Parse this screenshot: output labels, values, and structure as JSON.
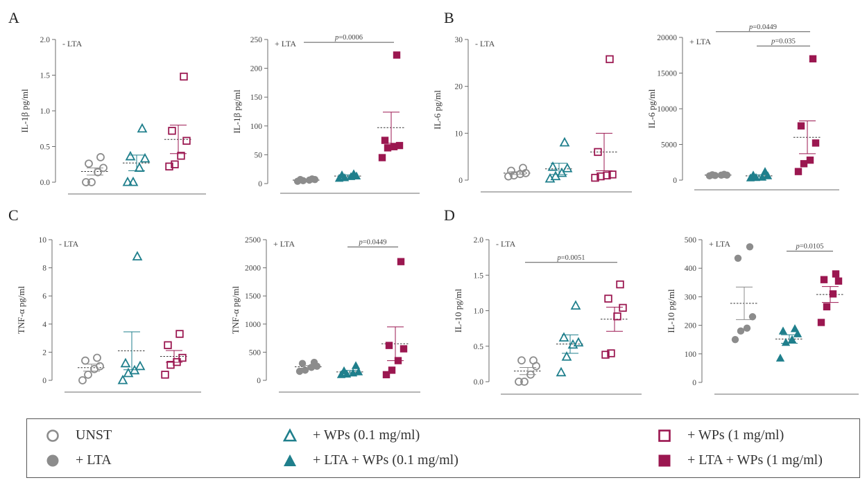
{
  "colors": {
    "unst": "#8c8c8c",
    "wp01": "#1f7f8c",
    "wp1": "#9b1750",
    "axis": "#6b6b6b",
    "sem": "#9a9a9a"
  },
  "panel_letters": [
    "A",
    "B",
    "C",
    "D"
  ],
  "legend": [
    {
      "key": "unst_open",
      "label": "UNST",
      "shape": "circle-open",
      "color": "#8c8c8c"
    },
    {
      "key": "unst_filled",
      "label": "+ LTA",
      "shape": "circle-filled",
      "color": "#8c8c8c"
    },
    {
      "key": "wp01_open",
      "label": "+ WPs (0.1 mg/ml)",
      "shape": "triangle-open",
      "color": "#1f7f8c"
    },
    {
      "key": "wp01_filled",
      "label": "+ LTA + WPs (0.1 mg/ml)",
      "shape": "triangle-filled",
      "color": "#1f7f8c"
    },
    {
      "key": "wp1_open",
      "label": "+ WPs (1 mg/ml)",
      "shape": "square-open",
      "color": "#9b1750"
    },
    {
      "key": "wp1_filled",
      "label": "+ LTA + WPs (1 mg/ml)",
      "shape": "square-filled",
      "color": "#9b1750"
    }
  ],
  "chart_data": [
    {
      "id": "A1",
      "type": "scatter",
      "title": "- LTA",
      "ylabel": "IL-1β pg/ml",
      "ylim": [
        0,
        2.0
      ],
      "ticks": [
        0.0,
        0.5,
        1.0,
        1.5,
        2.0
      ],
      "tick_labels": [
        "0.0",
        "0.5",
        "1.0",
        "1.5",
        "2.0"
      ],
      "filled": false,
      "groups": [
        {
          "name": "UNST",
          "points": [
            0.0,
            0.0,
            0.14,
            0.2,
            0.26,
            0.35
          ],
          "mean": 0.15,
          "sem": 0.05
        },
        {
          "name": "+ WPs (0.1 mg/ml)",
          "points": [
            0.0,
            0.0,
            0.2,
            0.33,
            0.36,
            0.75
          ],
          "mean": 0.27,
          "sem": 0.11
        },
        {
          "name": "+ WPs (1 mg/ml)",
          "points": [
            0.22,
            0.25,
            0.37,
            0.58,
            0.72,
            1.48
          ],
          "mean": 0.6,
          "sem": 0.2
        }
      ],
      "pvalues": []
    },
    {
      "id": "A2",
      "type": "scatter",
      "title": "+ LTA",
      "ylabel": "IL-1β pg/ml",
      "ylim": [
        0,
        250
      ],
      "ticks": [
        0,
        50,
        100,
        150,
        200,
        250
      ],
      "tick_labels": [
        "0",
        "50",
        "100",
        "150",
        "200",
        "250"
      ],
      "filled": true,
      "groups": [
        {
          "name": "+ LTA",
          "points": [
            4,
            5,
            6,
            7,
            7,
            8
          ],
          "mean": 6,
          "sem": 1
        },
        {
          "name": "+ LTA + WPs (0.1 mg/ml)",
          "points": [
            9,
            10,
            12,
            13,
            15,
            17
          ],
          "mean": 13,
          "sem": 2
        },
        {
          "name": "+ LTA + WPs (1 mg/ml)",
          "points": [
            45,
            62,
            64,
            66,
            75,
            223
          ],
          "mean": 97,
          "sem": 27
        }
      ],
      "pvalues": [
        {
          "text": "p=0.0006",
          "from": 0,
          "to": 2,
          "y": 245
        }
      ]
    },
    {
      "id": "B1",
      "type": "scatter",
      "title": "- LTA",
      "ylabel": "IL-6 pg/ml",
      "ylim": [
        0,
        30
      ],
      "ticks": [
        0,
        10,
        20,
        30
      ],
      "tick_labels": [
        "0",
        "10",
        "20",
        "30"
      ],
      "filled": false,
      "groups": [
        {
          "name": "UNST",
          "points": [
            0.8,
            1.0,
            1.3,
            1.5,
            2.0,
            2.6
          ],
          "mean": 1.5,
          "sem": 0.3
        },
        {
          "name": "+ WPs (0.1 mg/ml)",
          "points": [
            0.3,
            0.8,
            1.5,
            2.5,
            2.8,
            8.0
          ],
          "mean": 2.4,
          "sem": 1.2
        },
        {
          "name": "+ WPs (1 mg/ml)",
          "points": [
            0.5,
            0.8,
            1.0,
            1.2,
            6.0,
            25.8
          ],
          "mean": 6.0,
          "sem": 4.0
        }
      ],
      "pvalues": []
    },
    {
      "id": "B2",
      "type": "scatter",
      "title": "+ LTA",
      "ylabel": "IL-6 pg/ml",
      "ylim": [
        0,
        20000
      ],
      "ticks": [
        0,
        5000,
        10000,
        15000,
        20000
      ],
      "tick_labels": [
        "0",
        "5000",
        "10000",
        "15000",
        "20000"
      ],
      "filled": true,
      "groups": [
        {
          "name": "+ LTA",
          "points": [
            600,
            650,
            700,
            700,
            750,
            800
          ],
          "mean": 700,
          "sem": 40
        },
        {
          "name": "+ LTA + WPs (0.1 mg/ml)",
          "points": [
            300,
            350,
            400,
            600,
            700,
            1200
          ],
          "mean": 600,
          "sem": 140
        },
        {
          "name": "+ LTA + WPs (1 mg/ml)",
          "points": [
            1200,
            2300,
            2800,
            5200,
            7600,
            17000
          ],
          "mean": 6000,
          "sem": 2300
        }
      ],
      "pvalues": [
        {
          "text": "p=0.0449",
          "from": 0,
          "to": 2,
          "y": 20800
        },
        {
          "text": "p=0.035",
          "from": 1,
          "to": 2,
          "y": 18800
        }
      ]
    },
    {
      "id": "C1",
      "type": "scatter",
      "title": "- LTA",
      "ylabel": "TNF-α pg/ml",
      "ylim": [
        0,
        10
      ],
      "ticks": [
        0,
        2,
        4,
        6,
        8,
        10
      ],
      "tick_labels": [
        "0",
        "2",
        "4",
        "6",
        "8",
        "10"
      ],
      "filled": false,
      "groups": [
        {
          "name": "UNST",
          "points": [
            0.0,
            0.4,
            0.8,
            1.0,
            1.4,
            1.6
          ],
          "mean": 0.9,
          "sem": 0.25
        },
        {
          "name": "+ WPs (0.1 mg/ml)",
          "points": [
            0.0,
            0.5,
            0.7,
            1.0,
            1.2,
            8.8
          ],
          "mean": 2.1,
          "sem": 1.35
        },
        {
          "name": "+ WPs (1 mg/ml)",
          "points": [
            0.4,
            1.1,
            1.3,
            1.6,
            2.5,
            3.3
          ],
          "mean": 1.7,
          "sem": 0.42
        }
      ],
      "pvalues": []
    },
    {
      "id": "C2",
      "type": "scatter",
      "title": "+ LTA",
      "ylabel": "TNF-α pg/ml",
      "ylim": [
        0,
        2500
      ],
      "ticks": [
        0,
        500,
        1000,
        1500,
        2000,
        2500
      ],
      "tick_labels": [
        "0",
        "500",
        "1000",
        "1500",
        "2000",
        "2500"
      ],
      "filled": true,
      "groups": [
        {
          "name": "+ LTA",
          "points": [
            160,
            180,
            230,
            250,
            300,
            320
          ],
          "mean": 240,
          "sem": 25
        },
        {
          "name": "+ LTA + WPs (0.1 mg/ml)",
          "points": [
            100,
            110,
            130,
            150,
            170,
            260
          ],
          "mean": 150,
          "sem": 25
        },
        {
          "name": "+ LTA + WPs (1 mg/ml)",
          "points": [
            100,
            180,
            350,
            560,
            620,
            2110
          ],
          "mean": 650,
          "sem": 300
        }
      ],
      "pvalues": [
        {
          "text": "p=0.0449",
          "from": 1,
          "to": 2,
          "y": 2370
        }
      ]
    },
    {
      "id": "D1",
      "type": "scatter",
      "title": "- LTA",
      "ylabel": "IL-10 pg/ml",
      "ylim": [
        0,
        2.0
      ],
      "ticks": [
        0.0,
        0.5,
        1.0,
        1.5,
        2.0
      ],
      "tick_labels": [
        "0.0",
        "0.5",
        "1.0",
        "1.5",
        "2.0"
      ],
      "filled": false,
      "groups": [
        {
          "name": "UNST",
          "points": [
            0.0,
            0.0,
            0.1,
            0.22,
            0.3,
            0.3
          ],
          "mean": 0.15,
          "sem": 0.05
        },
        {
          "name": "+ WPs (0.1 mg/ml)",
          "points": [
            0.13,
            0.35,
            0.52,
            0.55,
            0.62,
            1.07
          ],
          "mean": 0.53,
          "sem": 0.13
        },
        {
          "name": "+ WPs (1 mg/ml)",
          "points": [
            0.38,
            0.4,
            0.92,
            1.04,
            1.17,
            1.37
          ],
          "mean": 0.88,
          "sem": 0.17
        }
      ],
      "pvalues": [
        {
          "text": "p=0.0051",
          "from": 0,
          "to": 2,
          "y": 1.68
        }
      ]
    },
    {
      "id": "D2",
      "type": "scatter",
      "title": "+ LTA",
      "ylabel": "IL-10 pg/ml",
      "ylim": [
        0,
        500
      ],
      "ticks": [
        0,
        100,
        200,
        300,
        400,
        500
      ],
      "tick_labels": [
        "0",
        "100",
        "200",
        "300",
        "400",
        "500"
      ],
      "filled": true,
      "groups": [
        {
          "name": "+ LTA",
          "points": [
            150,
            180,
            190,
            230,
            435,
            475
          ],
          "mean": 277,
          "sem": 57
        },
        {
          "name": "+ LTA + WPs (0.1 mg/ml)",
          "points": [
            85,
            140,
            150,
            170,
            180,
            188
          ],
          "mean": 152,
          "sem": 15
        },
        {
          "name": "+ LTA + WPs (1 mg/ml)",
          "points": [
            210,
            265,
            310,
            355,
            360,
            380
          ],
          "mean": 308,
          "sem": 28
        }
      ],
      "pvalues": [
        {
          "text": "p=0.0105",
          "from": 1,
          "to": 2,
          "y": 460
        }
      ]
    }
  ]
}
